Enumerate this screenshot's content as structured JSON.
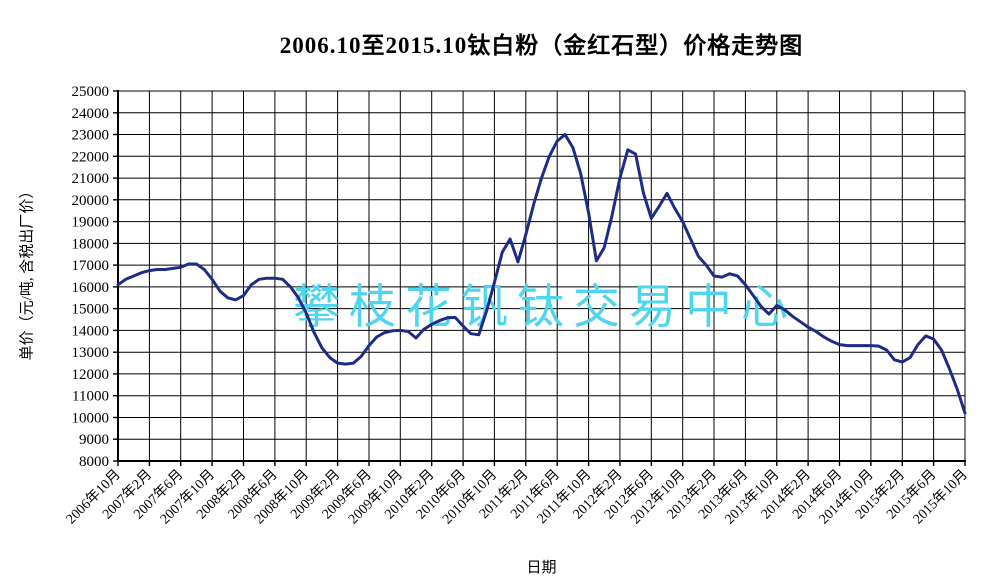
{
  "page": {
    "title": "2006.10至2015.10钛白粉（金红石型）价格走势图",
    "watermark": "攀枝花钒钛交易中心"
  },
  "chart_data": {
    "type": "line",
    "title": "2006.10至2015.10钛白粉（金红石型）价格走势图",
    "xlabel": "日期",
    "ylabel": "单价（元/吨, 含税出厂价）",
    "ylim": [
      8000,
      25000
    ],
    "grid": true,
    "legend_position": "none",
    "colors": {
      "line": "#1f2c87",
      "grid": "#000000",
      "watermark": "#4fd5ed",
      "text": "#000000"
    },
    "y_ticks": [
      8000,
      9000,
      10000,
      11000,
      12000,
      13000,
      14000,
      15000,
      16000,
      17000,
      18000,
      19000,
      20000,
      21000,
      22000,
      23000,
      24000,
      25000
    ],
    "x_tick_labels": [
      "2006年10月",
      "2007年2月",
      "2007年6月",
      "2007年10月",
      "2008年2月",
      "2008年6月",
      "2008年10月",
      "2009年2月",
      "2009年6月",
      "2009年10月",
      "2010年2月",
      "2010年6月",
      "2010年10月",
      "2011年2月",
      "2011年6月",
      "2011年10月",
      "2012年2月",
      "2012年6月",
      "2012年10月",
      "2013年2月",
      "2013年6月",
      "2013年10月",
      "2014年2月",
      "2014年6月",
      "2014年10月",
      "2015年2月",
      "2015年6月",
      "2015年10月"
    ],
    "x_start": "2006年10月",
    "x_end": "2015年10月",
    "x_interval": "monthly",
    "series": [
      {
        "name": "钛白粉（金红石型）价格",
        "values": [
          16100,
          16350,
          16500,
          16650,
          16750,
          16800,
          16800,
          16850,
          16900,
          17050,
          17050,
          16800,
          16350,
          15800,
          15500,
          15400,
          15600,
          16100,
          16350,
          16400,
          16400,
          16350,
          16000,
          15500,
          14800,
          13900,
          13200,
          12750,
          12500,
          12450,
          12500,
          12800,
          13300,
          13700,
          13900,
          13980,
          14000,
          13950,
          13650,
          14050,
          14280,
          14450,
          14580,
          14600,
          14200,
          13850,
          13800,
          14900,
          16200,
          17600,
          18200,
          17150,
          18400,
          19800,
          21000,
          22000,
          22700,
          23000,
          22400,
          21200,
          19400,
          17200,
          17800,
          19300,
          21000,
          22300,
          22100,
          20300,
          19150,
          19700,
          20300,
          19600,
          19000,
          18200,
          17400,
          17000,
          16500,
          16450,
          16600,
          16500,
          16100,
          15600,
          15100,
          14750,
          15150,
          14950,
          14650,
          14400,
          14150,
          13950,
          13700,
          13500,
          13350,
          13300,
          13300,
          13300,
          13300,
          13280,
          13100,
          12650,
          12550,
          12750,
          13350,
          13750,
          13600,
          13100,
          12250,
          11300,
          10200
        ]
      }
    ]
  }
}
